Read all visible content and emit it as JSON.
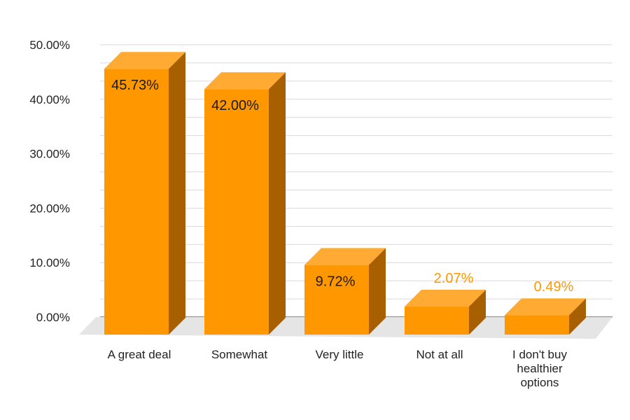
{
  "chart_data": {
    "type": "bar",
    "style": "3d",
    "categories": [
      "A great deal",
      "Somewhat",
      "Very little",
      "Not at all",
      "I don't buy healthier options"
    ],
    "category_lines": [
      [
        "A great deal"
      ],
      [
        "Somewhat"
      ],
      [
        "Very little"
      ],
      [
        "Not at all"
      ],
      [
        "I don't buy",
        "healthier",
        "options"
      ]
    ],
    "values": [
      45.73,
      42.0,
      9.72,
      2.07,
      0.49
    ],
    "data_labels": [
      "45.73%",
      "42.00%",
      "9.72%",
      "2.07%",
      "0.49%"
    ],
    "y_ticks": [
      "0.00%",
      "10.00%",
      "20.00%",
      "30.00%",
      "40.00%",
      "50.00%"
    ],
    "ylim": [
      0,
      50
    ],
    "grid": true,
    "colors": {
      "bar_front": "#FF9800",
      "bar_top": "#FFAB33",
      "bar_side": "#A85F00",
      "label_inside": "#1a1a1a",
      "label_outside": "#FF9800",
      "floor": "#E5E5E5",
      "grid": "#D9D9D9"
    }
  }
}
